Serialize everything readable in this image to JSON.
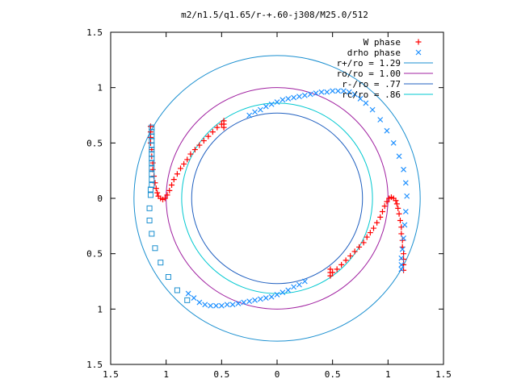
{
  "chart_data": {
    "type": "scatter",
    "title": "m2/n1.5/q1.65/r-+.60-j308/M25.0/512",
    "xlabel": "",
    "ylabel": "",
    "xlim": [
      -1.5,
      1.5
    ],
    "ylim": [
      -1.5,
      1.5
    ],
    "xtick_values": [
      -1.5,
      -1,
      -0.5,
      0,
      0.5,
      1,
      1.5
    ],
    "xtick_labels": [
      "1.5",
      "1",
      "0.5",
      "0",
      "0.5",
      "1",
      "1.5"
    ],
    "ytick_values": [
      1.5,
      1,
      0.5,
      0,
      -0.5,
      -1,
      -1.5
    ],
    "ytick_labels": [
      "1.5",
      "1",
      "0.5",
      "0",
      "0.5",
      "1",
      "1.5"
    ],
    "grid": false,
    "legend_position": "top-right",
    "legend": [
      {
        "label": "W phase",
        "marker": "+",
        "color": "#ff0000"
      },
      {
        "label": "drho phase",
        "marker": "x",
        "color": "#1e90ff"
      },
      {
        "label": "r+/ro = 1.29",
        "line": true,
        "color": "#1a8fd0"
      },
      {
        "label": "ro/ro = 1.00",
        "line": true,
        "color": "#a020a0"
      },
      {
        "label": "r-/ro = .77",
        "line": true,
        "color": "#2060c0"
      },
      {
        "label": "rc/ro = .86",
        "line": true,
        "color": "#00c8d0"
      }
    ],
    "circles": [
      {
        "name": "r+/ro",
        "r": 1.29,
        "color": "#1a8fd0"
      },
      {
        "name": "ro/ro",
        "r": 1.0,
        "color": "#a020a0"
      },
      {
        "name": "r-/ro",
        "r": 0.77,
        "color": "#2060c0"
      },
      {
        "name": "rc/ro",
        "r": 0.86,
        "color": "#00c8d0"
      }
    ],
    "series": [
      {
        "name": "W phase",
        "marker": "+",
        "color": "#ff0000",
        "points": [
          [
            -1.14,
            0.65
          ],
          [
            -1.14,
            0.6
          ],
          [
            -1.14,
            0.55
          ],
          [
            -1.14,
            0.5
          ],
          [
            -1.13,
            0.44
          ],
          [
            -1.13,
            0.38
          ],
          [
            -1.12,
            0.32
          ],
          [
            -1.12,
            0.26
          ],
          [
            -1.11,
            0.2
          ],
          [
            -1.1,
            0.14
          ],
          [
            -1.09,
            0.09
          ],
          [
            -1.08,
            0.05
          ],
          [
            -1.07,
            0.02
          ],
          [
            -1.05,
            0.0
          ],
          [
            -1.03,
            -0.01
          ],
          [
            -1.01,
            0.0
          ],
          [
            -0.99,
            0.03
          ],
          [
            -0.97,
            0.07
          ],
          [
            -0.95,
            0.12
          ],
          [
            -0.93,
            0.17
          ],
          [
            -0.9,
            0.22
          ],
          [
            -0.87,
            0.27
          ],
          [
            -0.84,
            0.31
          ],
          [
            -0.81,
            0.35
          ],
          [
            -0.78,
            0.4
          ],
          [
            -0.74,
            0.44
          ],
          [
            -0.7,
            0.48
          ],
          [
            -0.66,
            0.52
          ],
          [
            -0.62,
            0.56
          ],
          [
            -0.58,
            0.6
          ],
          [
            -0.54,
            0.64
          ],
          [
            -0.5,
            0.67
          ],
          [
            -0.48,
            0.7
          ],
          [
            -0.48,
            0.67
          ],
          [
            -0.48,
            0.64
          ],
          [
            1.14,
            -0.65
          ],
          [
            1.14,
            -0.6
          ],
          [
            1.14,
            -0.55
          ],
          [
            1.14,
            -0.5
          ],
          [
            1.13,
            -0.44
          ],
          [
            1.13,
            -0.38
          ],
          [
            1.12,
            -0.32
          ],
          [
            1.12,
            -0.26
          ],
          [
            1.11,
            -0.2
          ],
          [
            1.1,
            -0.14
          ],
          [
            1.09,
            -0.09
          ],
          [
            1.08,
            -0.05
          ],
          [
            1.07,
            -0.02
          ],
          [
            1.05,
            0.0
          ],
          [
            1.03,
            0.01
          ],
          [
            1.01,
            0.0
          ],
          [
            0.99,
            -0.03
          ],
          [
            0.97,
            -0.07
          ],
          [
            0.95,
            -0.12
          ],
          [
            0.93,
            -0.17
          ],
          [
            0.9,
            -0.22
          ],
          [
            0.87,
            -0.27
          ],
          [
            0.84,
            -0.31
          ],
          [
            0.81,
            -0.35
          ],
          [
            0.78,
            -0.4
          ],
          [
            0.74,
            -0.44
          ],
          [
            0.7,
            -0.48
          ],
          [
            0.66,
            -0.52
          ],
          [
            0.62,
            -0.56
          ],
          [
            0.58,
            -0.6
          ],
          [
            0.54,
            -0.64
          ],
          [
            0.5,
            -0.67
          ],
          [
            0.48,
            -0.7
          ],
          [
            0.48,
            -0.67
          ],
          [
            0.48,
            -0.64
          ]
        ]
      },
      {
        "name": "drho phase",
        "marker": "x",
        "color": "#1e90ff",
        "points": [
          [
            -0.25,
            0.75
          ],
          [
            -0.2,
            0.78
          ],
          [
            -0.15,
            0.8
          ],
          [
            -0.1,
            0.83
          ],
          [
            -0.05,
            0.85
          ],
          [
            0.0,
            0.87
          ],
          [
            0.05,
            0.89
          ],
          [
            0.1,
            0.9
          ],
          [
            0.15,
            0.91
          ],
          [
            0.2,
            0.92
          ],
          [
            0.25,
            0.93
          ],
          [
            0.3,
            0.94
          ],
          [
            0.35,
            0.95
          ],
          [
            0.4,
            0.96
          ],
          [
            0.45,
            0.96
          ],
          [
            0.5,
            0.97
          ],
          [
            0.55,
            0.97
          ],
          [
            0.6,
            0.97
          ],
          [
            0.65,
            0.96
          ],
          [
            0.7,
            0.94
          ],
          [
            0.75,
            0.9
          ],
          [
            0.8,
            0.86
          ],
          [
            0.86,
            0.8
          ],
          [
            0.93,
            0.71
          ],
          [
            0.99,
            0.61
          ],
          [
            1.05,
            0.5
          ],
          [
            1.1,
            0.38
          ],
          [
            1.14,
            0.26
          ],
          [
            1.16,
            0.14
          ],
          [
            1.17,
            0.02
          ],
          [
            1.16,
            -0.12
          ],
          [
            1.15,
            -0.24
          ],
          [
            1.14,
            -0.36
          ],
          [
            1.13,
            -0.46
          ],
          [
            1.12,
            -0.54
          ],
          [
            1.12,
            -0.6
          ],
          [
            1.12,
            -0.64
          ],
          [
            0.25,
            -0.75
          ],
          [
            0.2,
            -0.78
          ],
          [
            0.15,
            -0.8
          ],
          [
            0.1,
            -0.83
          ],
          [
            0.05,
            -0.85
          ],
          [
            0.0,
            -0.87
          ],
          [
            -0.05,
            -0.89
          ],
          [
            -0.1,
            -0.9
          ],
          [
            -0.15,
            -0.91
          ],
          [
            -0.2,
            -0.92
          ],
          [
            -0.25,
            -0.93
          ],
          [
            -0.3,
            -0.94
          ],
          [
            -0.35,
            -0.95
          ],
          [
            -0.4,
            -0.96
          ],
          [
            -0.45,
            -0.96
          ],
          [
            -0.5,
            -0.97
          ],
          [
            -0.55,
            -0.97
          ],
          [
            -0.6,
            -0.97
          ],
          [
            -0.65,
            -0.96
          ],
          [
            -0.7,
            -0.94
          ],
          [
            -0.75,
            -0.9
          ],
          [
            -0.8,
            -0.86
          ]
        ]
      },
      {
        "name": "r+/ro = 1.29",
        "marker": "square",
        "color": "#1a8fd0",
        "points": [
          [
            -1.13,
            0.64
          ],
          [
            -1.13,
            0.6
          ],
          [
            -1.13,
            0.56
          ],
          [
            -1.13,
            0.52
          ],
          [
            -1.13,
            0.48
          ],
          [
            -1.13,
            0.44
          ],
          [
            -1.13,
            0.4
          ],
          [
            -1.13,
            0.36
          ],
          [
            -1.13,
            0.32
          ],
          [
            -1.13,
            0.27
          ],
          [
            -1.13,
            0.22
          ],
          [
            -1.13,
            0.17
          ],
          [
            -1.13,
            0.12
          ],
          [
            -1.14,
            0.08
          ],
          [
            -1.14,
            0.03
          ],
          [
            -1.15,
            -0.09
          ],
          [
            -1.15,
            -0.2
          ],
          [
            -1.13,
            -0.32
          ],
          [
            -1.1,
            -0.45
          ],
          [
            -1.05,
            -0.58
          ],
          [
            -0.98,
            -0.71
          ],
          [
            -0.9,
            -0.83
          ],
          [
            -0.81,
            -0.92
          ]
        ]
      }
    ]
  }
}
